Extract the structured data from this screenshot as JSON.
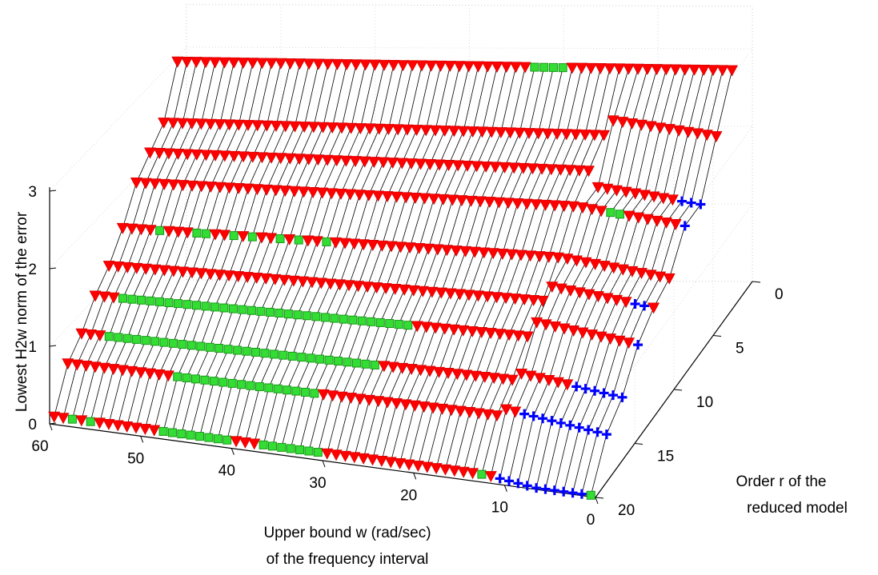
{
  "chart_data": {
    "type": "scatter",
    "projection": "3d",
    "xlabel": [
      "Upper bound w (rad/sec)",
      "of the frequency interval"
    ],
    "ylabel": [
      "Order r of the",
      "reduced model"
    ],
    "zlabel": "Lowest H2w norm of the error",
    "x_ticks": [
      "60",
      "50",
      "40",
      "30",
      "20",
      "10",
      "0"
    ],
    "y_ticks": [
      "0",
      "5",
      "10",
      "15",
      "20"
    ],
    "z_ticks": [
      "0",
      "1",
      "2",
      "3"
    ],
    "xlim": [
      0,
      60
    ],
    "ylim": [
      0,
      20
    ],
    "zlim": [
      0,
      3
    ],
    "grid": true,
    "marker_legend": {
      "red_triangle": "#ff0000",
      "green_square": "#33dd33",
      "blue_plus": "#0000ff"
    },
    "series": [
      {
        "order": 2,
        "z": 3.0,
        "blue": [],
        "green": [
          18.5,
          19.5,
          20.5,
          21.5
        ]
      },
      {
        "order": 4,
        "z_lead": 2.6,
        "z": 2.4,
        "blue": [],
        "green": []
      },
      {
        "order": 6,
        "z_lead": 2.0,
        "z": 2.2,
        "blue": [
          0.5,
          1.5,
          2.5
        ],
        "green": []
      },
      {
        "order": 8,
        "z_lead": 2.0,
        "z": 2.0,
        "blue": [
          0.5
        ],
        "green": [
          8,
          9
        ]
      },
      {
        "order": 10,
        "z_lead": 1.6,
        "z": 1.6,
        "blue": [],
        "green": [
          55.5,
          52,
          51,
          48,
          45.5,
          42.5,
          41,
          37.5
        ]
      },
      {
        "order": 12,
        "z_lead": 1.5,
        "z": 1.3,
        "blue": [
          1.5,
          2.5
        ],
        "green": []
      },
      {
        "order": 14,
        "z_lead": 1.3,
        "z": 1.1,
        "blue": [
          0.5
        ],
        "green": [
          56.5,
          55.5,
          54.5,
          53.5,
          52.5,
          51.5,
          50.5,
          49.5,
          48.5,
          47.5,
          46.5,
          45.5,
          44.5,
          43.5,
          42.5,
          41.5,
          40.5,
          39.5,
          38.5,
          37.5,
          36.5,
          35.5,
          34.5,
          33.5,
          32.5,
          31.5,
          30.5,
          29.5,
          28.5,
          27.5,
          26.5,
          25.5
        ]
      },
      {
        "order": 16,
        "z_lead": 0.9,
        "z": 0.8,
        "blue": [
          0.5,
          1.5,
          2.5,
          3.5,
          4.5,
          5.5
        ],
        "green": [
          56.5,
          55.5,
          54.5,
          53.5,
          52.5,
          51.5,
          50.5,
          49.5,
          48.5,
          47.5,
          46.5,
          45.5,
          44.5,
          43.5,
          42.5,
          41.5,
          40.5,
          39.5,
          38.5,
          37.5,
          36.5,
          35.5,
          34.5,
          33.5,
          32.5,
          31.5,
          30.5,
          29.5,
          28.5,
          27.5
        ]
      },
      {
        "order": 18,
        "z_lead": 0.7,
        "z": 0.6,
        "blue": [
          0.5,
          1.5,
          2.5,
          3.5,
          4.5,
          5.5,
          6.5,
          7.5,
          8.5,
          9.5
        ],
        "green": [
          47.5,
          46.5,
          45.5,
          44.5,
          43.5,
          42.5,
          41.5,
          40.5,
          39.5,
          38.5,
          37.5,
          36.5,
          35.5,
          34.5,
          33.5,
          32.5
        ]
      },
      {
        "order": 20,
        "z_lead": 0.1,
        "z": 0.1,
        "blue": [
          1.5,
          2.5,
          3.5,
          4.5,
          5.5,
          6.5,
          7.5,
          8.5,
          9.5,
          10.5
        ],
        "green": [
          0.5,
          57.5,
          55.5,
          47.5,
          46.5,
          45.5,
          44.5,
          43.5,
          42.5,
          41.5,
          40.5,
          36.5,
          35.5,
          34.5,
          33.5,
          32.5,
          31.5,
          30.5,
          12.5,
          10.5,
          9.5,
          8.5,
          6.5,
          4.5
        ]
      }
    ]
  }
}
